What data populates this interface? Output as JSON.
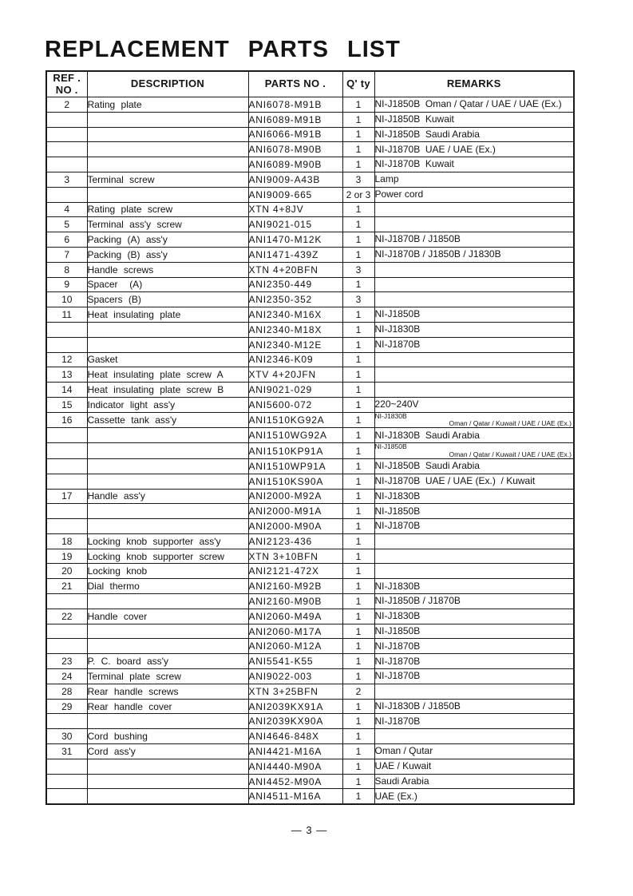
{
  "page": {
    "title": "REPLACEMENT PARTS LIST",
    "footer": "— 3 —"
  },
  "table": {
    "headers": {
      "ref_line1": "REF .",
      "ref_line2": "NO .",
      "description": "DESCRIPTION",
      "parts_no": "PARTS NO .",
      "qty": "Q' ty",
      "remarks": "REMARKS"
    },
    "rows": [
      {
        "ref": "2",
        "description": "Rating plate",
        "parts_no": "ANI6078-M91B",
        "qty": "1",
        "remarks": "NI-J1850B  Oman / Qatar / UAE / UAE (Ex.)"
      },
      {
        "ref": "",
        "description": "",
        "parts_no": "ANI6089-M91B",
        "qty": "1",
        "remarks": "NI-J1850B  Kuwait"
      },
      {
        "ref": "",
        "description": "",
        "parts_no": "ANI6066-M91B",
        "qty": "1",
        "remarks": "NI-J1850B  Saudi Arabia"
      },
      {
        "ref": "",
        "description": "",
        "parts_no": "ANI6078-M90B",
        "qty": "1",
        "remarks": "NI-J1870B  UAE / UAE (Ex.)"
      },
      {
        "ref": "",
        "description": "",
        "parts_no": "ANI6089-M90B",
        "qty": "1",
        "remarks": "NI-J1870B  Kuwait"
      },
      {
        "ref": "3",
        "description": "Terminal screw",
        "parts_no": "ANI9009-A43B",
        "qty": "3",
        "remarks": "Lamp"
      },
      {
        "ref": "",
        "description": "",
        "parts_no": "ANI9009-665",
        "qty": "2 or 3",
        "remarks": "Power cord"
      },
      {
        "ref": "4",
        "description": "Rating plate screw",
        "parts_no": "XTN 4+8JV",
        "qty": "1",
        "remarks": ""
      },
      {
        "ref": "5",
        "description": "Terminal ass'y screw",
        "parts_no": "ANI9021-015",
        "qty": "1",
        "remarks": ""
      },
      {
        "ref": "6",
        "description": "Packing (A) ass'y",
        "parts_no": "ANI1470-M12K",
        "qty": "1",
        "remarks": "NI-J1870B / J1850B"
      },
      {
        "ref": "7",
        "description": "Packing (B) ass'y",
        "parts_no": "ANI1471-439Z",
        "qty": "1",
        "remarks": "NI-J1870B / J1850B / J1830B"
      },
      {
        "ref": "8",
        "description": "Handle screws",
        "parts_no": "XTN 4+20BFN",
        "qty": "3",
        "remarks": ""
      },
      {
        "ref": "9",
        "description": "Spacer  (A)",
        "parts_no": "ANI2350-449",
        "qty": "1",
        "remarks": ""
      },
      {
        "ref": "10",
        "description": "Spacers (B)",
        "parts_no": "ANI2350-352",
        "qty": "3",
        "remarks": ""
      },
      {
        "ref": "11",
        "description": "Heat insulating plate",
        "parts_no": "ANI2340-M16X",
        "qty": "1",
        "remarks": "NI-J1850B"
      },
      {
        "ref": "",
        "description": "",
        "parts_no": "ANI2340-M18X",
        "qty": "1",
        "remarks": "NI-J1830B"
      },
      {
        "ref": "",
        "description": "",
        "parts_no": "ANI2340-M12E",
        "qty": "1",
        "remarks": "NI-J1870B"
      },
      {
        "ref": "12",
        "description": "Gasket",
        "parts_no": "ANI2346-K09",
        "qty": "1",
        "remarks": ""
      },
      {
        "ref": "13",
        "description": "Heat insulating plate screw A",
        "parts_no": "XTV 4+20JFN",
        "qty": "1",
        "remarks": ""
      },
      {
        "ref": "14",
        "description": "Heat insulating plate screw B",
        "parts_no": "ANI9021-029",
        "qty": "1",
        "remarks": ""
      },
      {
        "ref": "15",
        "description": "Indicator light ass'y",
        "parts_no": "ANI5600-072",
        "qty": "1",
        "remarks": "220~240V"
      },
      {
        "ref": "16",
        "description": "Cassette tank ass'y",
        "parts_no": "ANI1510KG92A",
        "qty": "1",
        "remarks": "NI-J1830B",
        "remarks2": "Oman / Qatar / Kuwait / UAE / UAE (Ex.)"
      },
      {
        "ref": "",
        "description": "",
        "parts_no": "ANI1510WG92A",
        "qty": "1",
        "remarks": "NI-J1830B  Saudi Arabia"
      },
      {
        "ref": "",
        "description": "",
        "parts_no": "ANI1510KP91A",
        "qty": "1",
        "remarks": "NI-J1850B",
        "remarks2": "Oman / Qatar / Kuwait / UAE / UAE (Ex.)"
      },
      {
        "ref": "",
        "description": "",
        "parts_no": "ANI1510WP91A",
        "qty": "1",
        "remarks": "NI-J1850B  Saudi Arabia"
      },
      {
        "ref": "",
        "description": "",
        "parts_no": "ANI1510KS90A",
        "qty": "1",
        "remarks": "NI-J1870B  UAE / UAE (Ex.)  / Kuwait"
      },
      {
        "ref": "17",
        "description": "Handle ass'y",
        "parts_no": "ANI2000-M92A",
        "qty": "1",
        "remarks": "NI-J1830B"
      },
      {
        "ref": "",
        "description": "",
        "parts_no": "ANI2000-M91A",
        "qty": "1",
        "remarks": "NI-J1850B"
      },
      {
        "ref": "",
        "description": "",
        "parts_no": "ANI2000-M90A",
        "qty": "1",
        "remarks": "NI-J1870B"
      },
      {
        "ref": "18",
        "description": "Locking knob supporter ass'y",
        "parts_no": "ANI2123-436",
        "qty": "1",
        "remarks": ""
      },
      {
        "ref": "19",
        "description": "Locking knob supporter screw",
        "parts_no": "XTN 3+10BFN",
        "qty": "1",
        "remarks": ""
      },
      {
        "ref": "20",
        "description": "Locking knob",
        "parts_no": "ANI2121-472X",
        "qty": "1",
        "remarks": ""
      },
      {
        "ref": "21",
        "description": "Dial thermo",
        "parts_no": "ANI2160-M92B",
        "qty": "1",
        "remarks": "NI-J1830B"
      },
      {
        "ref": "",
        "description": "",
        "parts_no": "ANI2160-M90B",
        "qty": "1",
        "remarks": "NI-J1850B / J1870B"
      },
      {
        "ref": "22",
        "description": "Handle cover",
        "parts_no": "ANI2060-M49A",
        "qty": "1",
        "remarks": "NI-J1830B"
      },
      {
        "ref": "",
        "description": "",
        "parts_no": "ANI2060-M17A",
        "qty": "1",
        "remarks": "NI-J1850B"
      },
      {
        "ref": "",
        "description": "",
        "parts_no": "ANI2060-M12A",
        "qty": "1",
        "remarks": "NI-J1870B"
      },
      {
        "ref": "23",
        "description": "P. C. board ass'y",
        "parts_no": "ANI5541-K55",
        "qty": "1",
        "remarks": "NI-J1870B"
      },
      {
        "ref": "24",
        "description": "Terminal plate screw",
        "parts_no": "ANI9022-003",
        "qty": "1",
        "remarks": "NI-J1870B"
      },
      {
        "ref": "28",
        "description": "Rear handle screws",
        "parts_no": "XTN 3+25BFN",
        "qty": "2",
        "remarks": ""
      },
      {
        "ref": "29",
        "description": "Rear handle cover",
        "parts_no": "ANI2039KX91A",
        "qty": "1",
        "remarks": "NI-J1830B / J1850B"
      },
      {
        "ref": "",
        "description": "",
        "parts_no": "ANI2039KX90A",
        "qty": "1",
        "remarks": "NI-J1870B"
      },
      {
        "ref": "30",
        "description": "Cord bushing",
        "parts_no": "ANI4646-848X",
        "qty": "1",
        "remarks": ""
      },
      {
        "ref": "31",
        "description": "Cord ass'y",
        "parts_no": "ANI4421-M16A",
        "qty": "1",
        "remarks": "Oman / Qutar"
      },
      {
        "ref": "",
        "description": "",
        "parts_no": "ANI4440-M90A",
        "qty": "1",
        "remarks": "UAE / Kuwait"
      },
      {
        "ref": "",
        "description": "",
        "parts_no": "ANI4452-M90A",
        "qty": "1",
        "remarks": "Saudi Arabia"
      },
      {
        "ref": "",
        "description": "",
        "parts_no": "ANI4511-M16A",
        "qty": "1",
        "remarks": "UAE (Ex.)"
      }
    ]
  }
}
